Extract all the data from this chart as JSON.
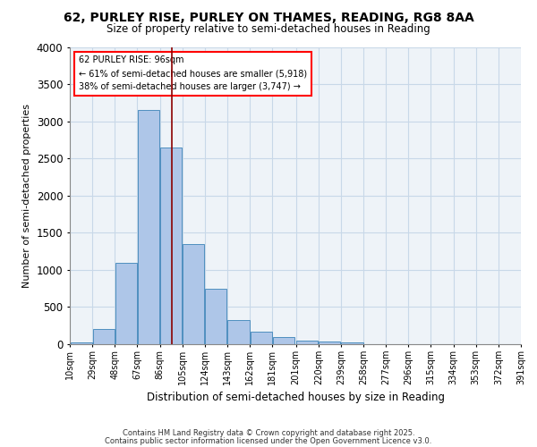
{
  "title1": "62, PURLEY RISE, PURLEY ON THAMES, READING, RG8 8AA",
  "title2": "Size of property relative to semi-detached houses in Reading",
  "xlabel": "Distribution of semi-detached houses by size in Reading",
  "ylabel": "Number of semi-detached properties",
  "footnote1": "Contains HM Land Registry data © Crown copyright and database right 2025.",
  "footnote2": "Contains public sector information licensed under the Open Government Licence v3.0.",
  "bin_labels": [
    "10sqm",
    "29sqm",
    "48sqm",
    "67sqm",
    "86sqm",
    "105sqm",
    "124sqm",
    "143sqm",
    "162sqm",
    "181sqm",
    "201sqm",
    "220sqm",
    "239sqm",
    "258sqm",
    "277sqm",
    "296sqm",
    "315sqm",
    "334sqm",
    "353sqm",
    "372sqm",
    "391sqm"
  ],
  "bar_values": [
    30,
    200,
    1100,
    3150,
    2650,
    1350,
    750,
    320,
    165,
    95,
    50,
    40,
    30,
    0,
    0,
    0,
    0,
    0,
    0,
    0
  ],
  "bin_edges": [
    10,
    29,
    48,
    67,
    86,
    105,
    124,
    143,
    162,
    181,
    201,
    220,
    239,
    258,
    277,
    296,
    315,
    334,
    353,
    372,
    391
  ],
  "property_size": 96,
  "bar_color": "#aec6e8",
  "bar_edge_color": "#4f8fbf",
  "vline_color": "#8b0000",
  "grid_color": "#c8d8e8",
  "bg_color": "#eef3f8",
  "annotation_line1": "62 PURLEY RISE: 96sqm",
  "annotation_line2": "← 61% of semi-detached houses are smaller (5,918)",
  "annotation_line3": "38% of semi-detached houses are larger (3,747) →",
  "ylim": [
    0,
    4000
  ],
  "yticks": [
    0,
    500,
    1000,
    1500,
    2000,
    2500,
    3000,
    3500,
    4000
  ]
}
